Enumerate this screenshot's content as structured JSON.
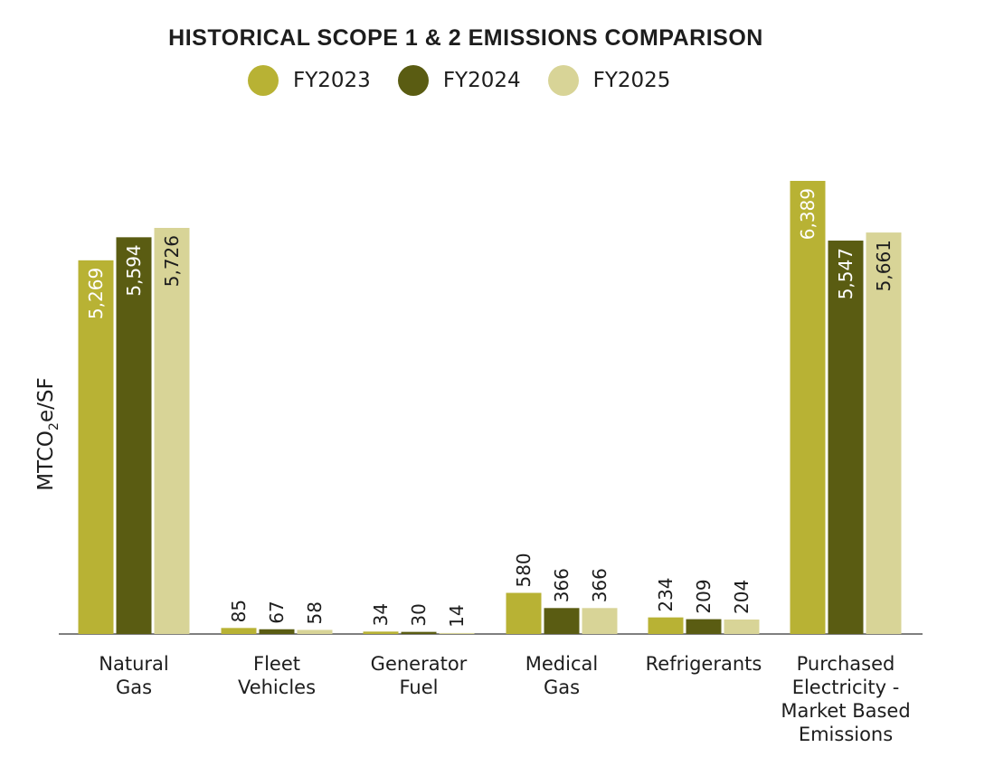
{
  "chart_data": {
    "type": "bar",
    "title": "HISTORICAL SCOPE 1 & 2 EMISSIONS COMPARISON",
    "ylabel_main": "MTCO",
    "ylabel_sub": "2",
    "ylabel_tail": "e/SF",
    "categories": [
      [
        "Natural",
        "Gas"
      ],
      [
        "Fleet",
        "Vehicles"
      ],
      [
        "Generator",
        "Fuel"
      ],
      [
        "Medical",
        "Gas"
      ],
      [
        "Refrigerants"
      ],
      [
        "Purchased",
        "Electricity -",
        "Market Based",
        "Emissions"
      ]
    ],
    "series": [
      {
        "name": "FY2023",
        "color": "#b8b234",
        "values": [
          5269,
          85,
          34,
          580,
          234,
          6389
        ],
        "labels": [
          "5,269",
          "85",
          "34",
          "580",
          "234",
          "6,389"
        ]
      },
      {
        "name": "FY2024",
        "color": "#5a5c12",
        "values": [
          5594,
          67,
          30,
          366,
          209,
          5547
        ],
        "labels": [
          "5,594",
          "67",
          "30",
          "366",
          "209",
          "5,547"
        ]
      },
      {
        "name": "FY2025",
        "color": "#d8d497",
        "values": [
          5726,
          58,
          14,
          366,
          204,
          5661
        ],
        "labels": [
          "5,726",
          "58",
          "14",
          "366",
          "204",
          "5,661"
        ]
      }
    ],
    "ylim": [
      0,
      6389
    ],
    "grid": false,
    "legend": "top"
  }
}
